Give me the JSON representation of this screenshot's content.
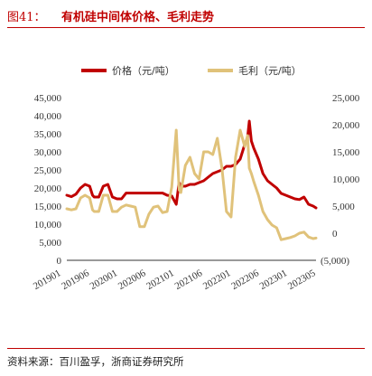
{
  "header": {
    "figure_number": "图41：",
    "title": "有机硅中间体价格、毛利走势"
  },
  "footer": {
    "source": "资料来源：百川盈孚，浙商证券研究所"
  },
  "chart_data": {
    "type": "line",
    "x_ticks": [
      "201901",
      "201906",
      "202001",
      "202006",
      "202101",
      "202106",
      "202201",
      "202206",
      "202301",
      "202305"
    ],
    "y_left": {
      "min": 0,
      "max": 45000,
      "ticks": [
        "0",
        "5,000",
        "10,000",
        "15,000",
        "20,000",
        "25,000",
        "30,000",
        "35,000",
        "40,000",
        "45,000"
      ]
    },
    "y_right": {
      "min": -5000,
      "max": 25000,
      "ticks": [
        "(5,000)",
        "0",
        "5,000",
        "10,000",
        "15,000",
        "20,000",
        "25,000"
      ]
    },
    "legend_position": "top",
    "grid": false,
    "series": [
      {
        "name": "价格（元/吨）",
        "axis": "left",
        "color": "#c00000",
        "points": [
          [
            "2019-01",
            18000
          ],
          [
            "2019-02",
            17600
          ],
          [
            "2019-03",
            18300
          ],
          [
            "2019-04",
            20000
          ],
          [
            "2019-05",
            21000
          ],
          [
            "2019-06",
            20500
          ],
          [
            "2019-06-20",
            18000
          ],
          [
            "2019-07",
            17500
          ],
          [
            "2019-08",
            17500
          ],
          [
            "2019-09",
            20500
          ],
          [
            "2019-10",
            21000
          ],
          [
            "2019-11",
            17500
          ],
          [
            "2019-12",
            17000
          ],
          [
            "2020-01",
            17000
          ],
          [
            "2020-02",
            18600
          ],
          [
            "2020-03",
            18600
          ],
          [
            "2020-04",
            18600
          ],
          [
            "2020-05",
            18600
          ],
          [
            "2020-06",
            18600
          ],
          [
            "2020-07",
            18600
          ],
          [
            "2020-08",
            18600
          ],
          [
            "2020-09",
            18600
          ],
          [
            "2020-10",
            18600
          ],
          [
            "2020-11",
            18000
          ],
          [
            "2020-12",
            17800
          ],
          [
            "2021-01",
            15500
          ],
          [
            "2021-01-20",
            21500
          ],
          [
            "2021-02",
            20500
          ],
          [
            "2021-03",
            20500
          ],
          [
            "2021-04",
            21000
          ],
          [
            "2021-05",
            21000
          ],
          [
            "2021-06",
            21500
          ],
          [
            "2021-07",
            22000
          ],
          [
            "2021-08",
            23000
          ],
          [
            "2021-09",
            24000
          ],
          [
            "2021-10",
            24500
          ],
          [
            "2021-11",
            25000
          ],
          [
            "2021-12",
            26000
          ],
          [
            "2022-01",
            26000
          ],
          [
            "2022-02",
            26500
          ],
          [
            "2022-03",
            28000
          ],
          [
            "2022-04",
            32000
          ],
          [
            "2022-04-20",
            34000
          ],
          [
            "2022-05",
            38500
          ],
          [
            "2022-05-15",
            33000
          ],
          [
            "2022-06",
            31000
          ],
          [
            "2022-07",
            28000
          ],
          [
            "2022-08",
            24000
          ],
          [
            "2022-09",
            22000
          ],
          [
            "2022-10",
            21000
          ],
          [
            "2022-11",
            20000
          ],
          [
            "2022-12",
            18500
          ],
          [
            "2023-01",
            18000
          ],
          [
            "2023-02",
            17500
          ],
          [
            "2023-03",
            17000
          ],
          [
            "2023-04",
            16800
          ],
          [
            "2023-05",
            17500
          ],
          [
            "2023-06",
            15500
          ],
          [
            "2023-07",
            15000
          ],
          [
            "2023-07-20",
            14500
          ]
        ]
      },
      {
        "name": "毛利（元/吨）",
        "axis": "right",
        "color": "#e0c27a",
        "points": [
          [
            "2019-01",
            4500
          ],
          [
            "2019-02",
            4300
          ],
          [
            "2019-03",
            4500
          ],
          [
            "2019-04",
            6500
          ],
          [
            "2019-05",
            7000
          ],
          [
            "2019-06",
            6500
          ],
          [
            "2019-06-20",
            4300
          ],
          [
            "2019-07",
            4000
          ],
          [
            "2019-08",
            4000
          ],
          [
            "2019-09",
            7000
          ],
          [
            "2019-10",
            7000
          ],
          [
            "2019-11",
            4000
          ],
          [
            "2019-12",
            4000
          ],
          [
            "2020-01",
            4800
          ],
          [
            "2020-02",
            5200
          ],
          [
            "2020-03",
            5000
          ],
          [
            "2020-04",
            4800
          ],
          [
            "2020-05",
            1200
          ],
          [
            "2020-06",
            1200
          ],
          [
            "2020-07",
            3500
          ],
          [
            "2020-08",
            4800
          ],
          [
            "2020-09",
            5000
          ],
          [
            "2020-10",
            3800
          ],
          [
            "2020-11",
            4000
          ],
          [
            "2020-12",
            8500
          ],
          [
            "2021-01",
            19000
          ],
          [
            "2021-01-20",
            8000
          ],
          [
            "2021-02",
            7500
          ],
          [
            "2021-03",
            12500
          ],
          [
            "2021-04",
            14000
          ],
          [
            "2021-05",
            11000
          ],
          [
            "2021-06",
            10000
          ],
          [
            "2021-07",
            15000
          ],
          [
            "2021-08",
            15000
          ],
          [
            "2021-09",
            14500
          ],
          [
            "2021-10",
            17500
          ],
          [
            "2021-11",
            12000
          ],
          [
            "2021-12",
            4000
          ],
          [
            "2022-01",
            3000
          ],
          [
            "2022-02",
            14000
          ],
          [
            "2022-03",
            19000
          ],
          [
            "2022-04",
            16000
          ],
          [
            "2022-04-20",
            18000
          ],
          [
            "2022-05",
            12000
          ],
          [
            "2022-05-15",
            11000
          ],
          [
            "2022-06",
            9500
          ],
          [
            "2022-07",
            7000
          ],
          [
            "2022-08",
            4000
          ],
          [
            "2022-09",
            2500
          ],
          [
            "2022-10",
            1500
          ],
          [
            "2022-11",
            1000
          ],
          [
            "2022-12",
            -1200
          ],
          [
            "2023-01",
            -1000
          ],
          [
            "2023-02",
            -800
          ],
          [
            "2023-03",
            -500
          ],
          [
            "2023-04",
            0
          ],
          [
            "2023-05",
            200
          ],
          [
            "2023-06",
            -700
          ],
          [
            "2023-07",
            -1000
          ],
          [
            "2023-07-20",
            -900
          ]
        ]
      }
    ]
  }
}
